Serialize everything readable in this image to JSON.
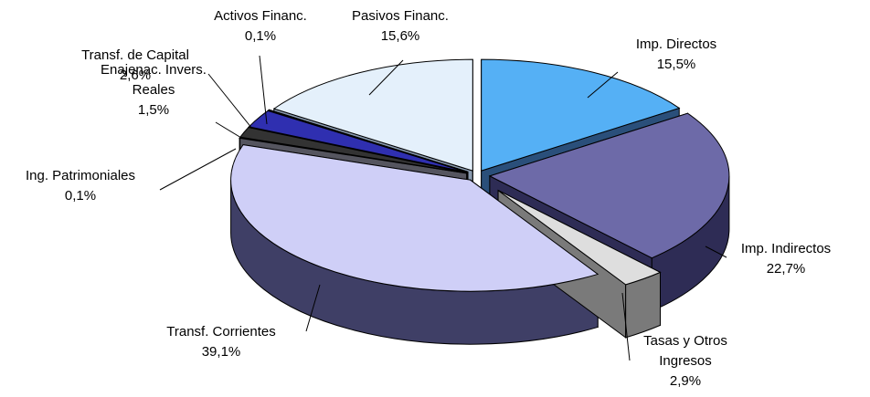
{
  "chart_data": {
    "type": "pie",
    "subtype": "exploded-3d",
    "title": "",
    "slices": [
      {
        "name": "Imp. Directos",
        "value": 15.5,
        "label": "15,5%",
        "color": "#55b0f5",
        "side_color": "#2a4f7a"
      },
      {
        "name": "Imp. Indirectos",
        "value": 22.7,
        "label": "22,7%",
        "color": "#6d6aa8",
        "side_color": "#2e2c55"
      },
      {
        "name": "Tasas y Otros Ingresos",
        "value": 2.9,
        "label": "2,9%",
        "color": "#dedede",
        "side_color": "#7a7a7a"
      },
      {
        "name": "Transf. Corrientes",
        "value": 39.1,
        "label": "39,1%",
        "color": "#cfcff7",
        "side_color": "#3f3f66"
      },
      {
        "name": "Ing. Patrimoniales",
        "value": 0.1,
        "label": "0,1%",
        "color": "#c0c0c8",
        "side_color": "#55555f"
      },
      {
        "name": "Enajenac. Invers. Reales",
        "value": 1.5,
        "label": "1,5%",
        "color": "#333333",
        "side_color": "#111111"
      },
      {
        "name": "Transf. de Capital",
        "value": 2.6,
        "label": "2,6%",
        "color": "#2f2fb0",
        "side_color": "#161660"
      },
      {
        "name": "Activos Financ.",
        "value": 0.1,
        "label": "0,1%",
        "color": "#b7b7e6",
        "side_color": "#4a4a7a"
      },
      {
        "name": "Pasivos Financ.",
        "value": 15.6,
        "label": "15,6%",
        "color": "#e4f0fb",
        "side_color": "#8a9bb0"
      }
    ],
    "legend": "none"
  },
  "labels": [
    {
      "lines": [
        "Imp. Directos",
        "15,5%"
      ]
    },
    {
      "lines": [
        "Imp. Indirectos",
        "22,7%"
      ]
    },
    {
      "lines": [
        "Tasas y Otros",
        "Ingresos",
        "2,9%"
      ]
    },
    {
      "lines": [
        "Transf. Corrientes",
        "39,1%"
      ]
    },
    {
      "lines": [
        "Ing. Patrimoniales",
        "0,1%"
      ]
    },
    {
      "lines": [
        "Enajenac. Invers.",
        "Reales",
        "1,5%"
      ]
    },
    {
      "lines": [
        "Transf. de Capital",
        "2,6%"
      ]
    },
    {
      "lines": [
        "Activos Financ.",
        "0,1%"
      ]
    },
    {
      "lines": [
        "Pasivos Financ.",
        "15,6%"
      ]
    }
  ]
}
